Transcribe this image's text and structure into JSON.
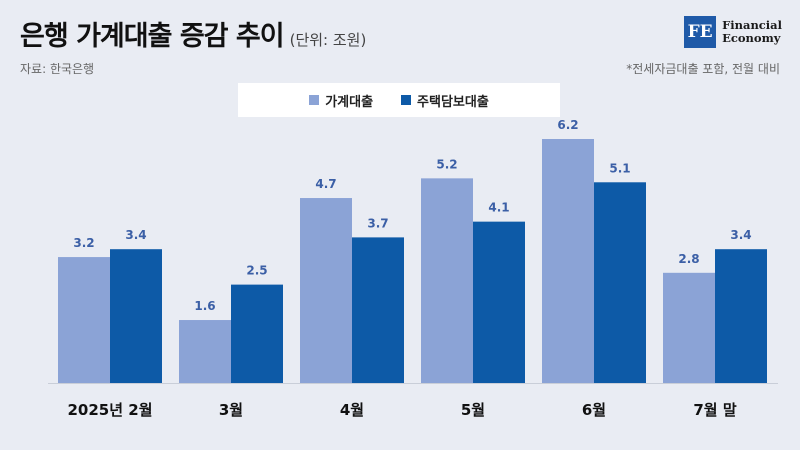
{
  "header": {
    "title": "은행 가계대출 증감 추이",
    "unit": "(단위: 조원)",
    "source": "자료: 한국은행",
    "note": "*전세자금대출 포함, 전월 대비"
  },
  "logo": {
    "mark": "FE",
    "line1": "Financial",
    "line2": "Economy"
  },
  "colors": {
    "series1": "#8ba3d6",
    "series2": "#0d5aa7"
  },
  "chart_data": {
    "type": "bar",
    "categories": [
      "2025년 2월",
      "3월",
      "4월",
      "5월",
      "6월",
      "7월 말"
    ],
    "series": [
      {
        "name": "가계대출",
        "values": [
          3.2,
          1.6,
          4.7,
          5.2,
          6.2,
          2.8
        ]
      },
      {
        "name": "주택담보대출",
        "values": [
          3.4,
          2.5,
          3.7,
          4.1,
          5.1,
          3.4
        ]
      }
    ],
    "ylim": [
      0,
      6.2
    ],
    "grid": false,
    "legend": "top-center"
  }
}
